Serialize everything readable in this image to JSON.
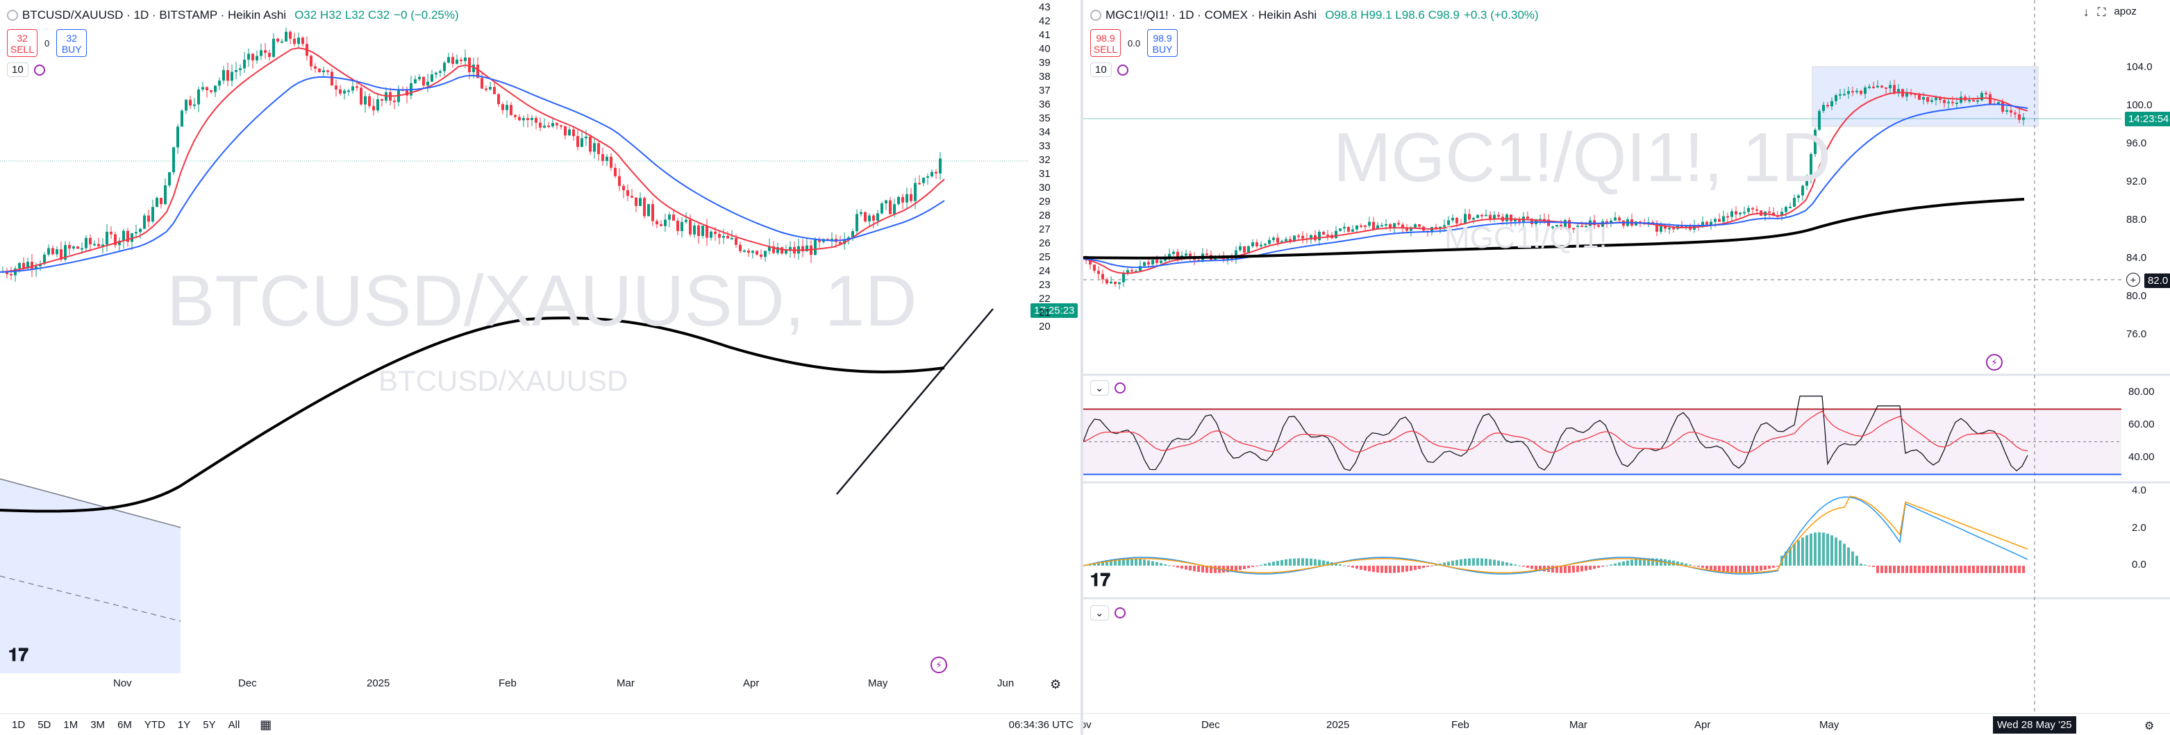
{
  "left": {
    "legend": {
      "symbol": "BTCUSD/XAUUSD · 1D · BITSTAMP · Heikin Ashi",
      "ohlc": "O32 H32 L32 C32",
      "change": "−0 (−0.25%)"
    },
    "sell": {
      "price": "32",
      "label": "SELL"
    },
    "buy": {
      "price": "32",
      "label": "BUY"
    },
    "spread": "0",
    "indicator_count": "10",
    "watermark_big": "BTCUSD/XAUUSD, 1D",
    "watermark_small": "BTCUSD/XAUUSD",
    "price_axis": [
      "43",
      "42",
      "41",
      "40",
      "39",
      "38",
      "37",
      "36",
      "35",
      "34",
      "33",
      "32",
      "31",
      "30",
      "29",
      "28",
      "27",
      "26",
      "25",
      "24",
      "23",
      "22",
      "21",
      "20"
    ],
    "price_tag": "17:25:23",
    "time_axis": [
      "Nov",
      "Dec",
      "2025",
      "Feb",
      "Mar",
      "Apr",
      "May",
      "Jun"
    ],
    "ranges": [
      "1D",
      "5D",
      "1M",
      "3M",
      "6M",
      "YTD",
      "1Y",
      "5Y",
      "All"
    ],
    "clock": "06:34:36 UTC",
    "colors": {
      "up": "#089981",
      "down": "#f23645",
      "ema_fast": "#f23645",
      "ema_mid": "#2962ff",
      "ema_slow": "#000000"
    }
  },
  "right": {
    "legend": {
      "symbol": "MGC1!/QI1! · 1D · COMEX · Heikin Ashi",
      "ohlc": "O98.8 H99.1 L98.6 C98.9",
      "change": "+0.3 (+0.30%)"
    },
    "sell": {
      "price": "98.9",
      "label": "SELL"
    },
    "buy": {
      "price": "98.9",
      "label": "BUY"
    },
    "spread": "0.0",
    "indicator_count": "10",
    "watermark_big": "MGC1!/QI1!, 1D",
    "watermark_small": "MGC1!/QI1!",
    "price_axis": [
      "104.0",
      "100.0",
      "96.0",
      "92.0",
      "88.0",
      "84.0",
      "80.0",
      "76.0"
    ],
    "price_tag": "14:23:54",
    "crosshair_price": "82.0",
    "rsi_axis": [
      "80.00",
      "60.00",
      "40.00"
    ],
    "macd_axis": [
      "4.0",
      "2.0",
      "0.0"
    ],
    "time_axis": [
      "Nov",
      "Dec",
      "2025",
      "Feb",
      "Mar",
      "Apr",
      "May"
    ],
    "crosshair_date": "Wed 28 May '25",
    "top_label": "apoz"
  }
}
